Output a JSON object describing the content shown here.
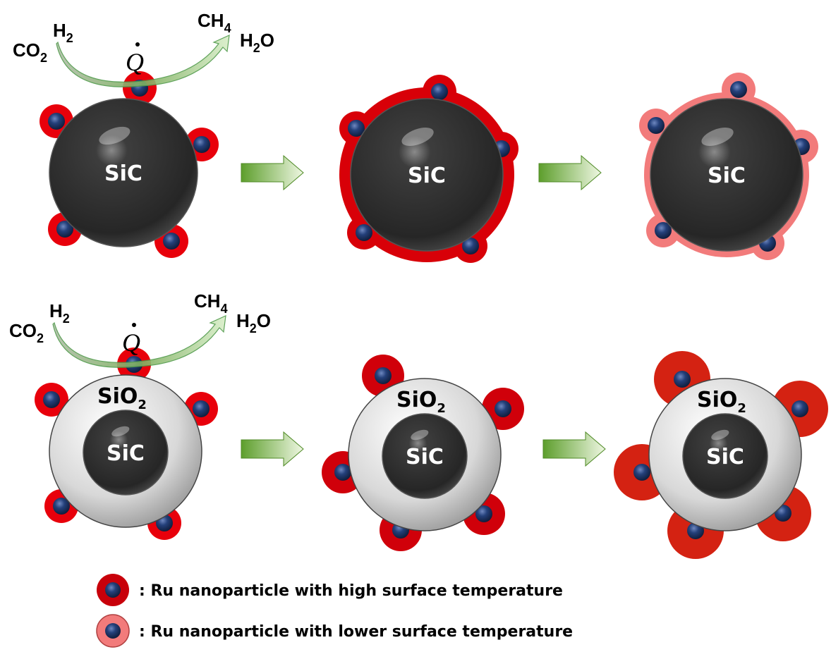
{
  "colors": {
    "high_temp_halo": "#e8000b",
    "lower_temp_halo": "#f27b7b",
    "large_halo": "#d42212",
    "ru_particle": "#1f3566",
    "sic_core": "#2e2e2e",
    "sio2_shell": "#dcdcdc",
    "process_arrow": "#6fae3a"
  },
  "reaction": {
    "reactant1": "CO",
    "reactant1_sub": "2",
    "reactant2": "H",
    "reactant2_sub": "2",
    "heat": "Q",
    "product1": "CH",
    "product1_sub": "4",
    "product2_a": "H",
    "product2_sub": "2",
    "product2_b": "O"
  },
  "labels": {
    "core": "SiC",
    "shell": "SiO",
    "shell_sub": "2"
  },
  "legend": [
    {
      "text": ": Ru nanoparticle with high surface temperature",
      "icon": "ru-particle-high-temp"
    },
    {
      "text": ": Ru nanoparticle with lower surface temperature",
      "icon": "ru-particle-lower-temp"
    }
  ]
}
